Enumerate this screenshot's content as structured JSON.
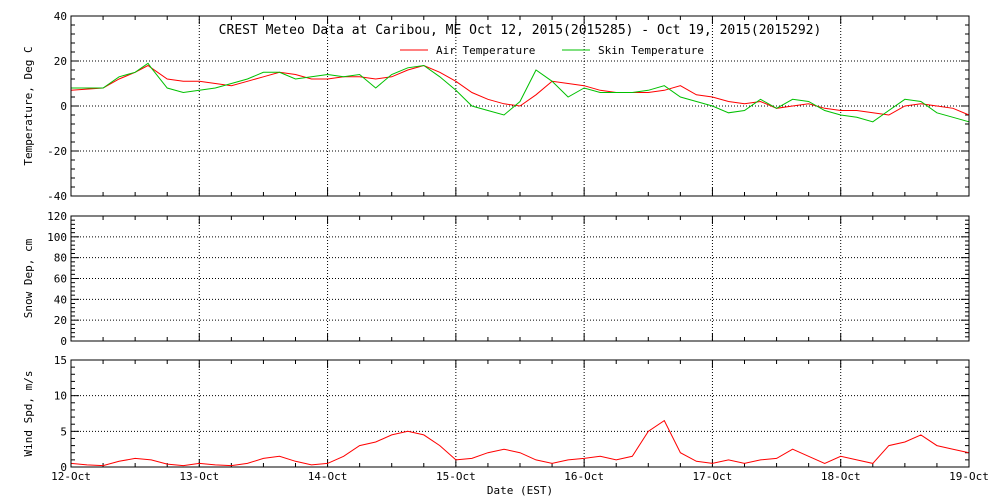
{
  "chart_data": [
    {
      "type": "line",
      "title": "CREST Meteo Data at Caribou, ME   Oct 12, 2015(2015285) - Oct 19, 2015(2015292)",
      "ylabel": "Temperature, Deg C",
      "ylim": [
        -40,
        40
      ],
      "yticks": [
        -40,
        -20,
        0,
        20,
        40
      ],
      "xlim": [
        0,
        7
      ],
      "grid": true,
      "legend": "top-center",
      "series": [
        {
          "name": "Air Temperature",
          "color": "#ff0000",
          "x": [
            0,
            0.125,
            0.25,
            0.375,
            0.5,
            0.6,
            0.625,
            0.75,
            0.875,
            1,
            1.125,
            1.25,
            1.375,
            1.5,
            1.625,
            1.75,
            1.875,
            2,
            2.125,
            2.25,
            2.375,
            2.5,
            2.625,
            2.75,
            2.875,
            3,
            3.125,
            3.25,
            3.375,
            3.5,
            3.625,
            3.75,
            3.875,
            4,
            4.125,
            4.25,
            4.375,
            4.5,
            4.625,
            4.75,
            4.875,
            5,
            5.125,
            5.25,
            5.375,
            5.5,
            5.625,
            5.75,
            5.875,
            6,
            6.125,
            6.25,
            6.375,
            6.5,
            6.625,
            6.75,
            6.875,
            7
          ],
          "values": [
            7,
            7.5,
            8,
            12,
            15,
            18,
            17,
            12,
            11,
            11,
            10,
            9,
            11,
            13,
            15,
            14,
            12,
            12,
            13,
            13,
            12,
            13,
            16,
            18,
            15,
            11,
            6,
            3,
            1,
            0,
            5,
            11,
            10,
            9,
            7,
            6,
            6,
            6,
            7,
            9,
            5,
            4,
            2,
            1,
            2,
            -1,
            0,
            1,
            -1,
            -2,
            -2,
            -3,
            -4,
            0,
            1,
            0,
            -1,
            -4
          ]
        },
        {
          "name": "Skin Temperature",
          "color": "#00c000",
          "x": [
            0,
            0.125,
            0.25,
            0.375,
            0.5,
            0.6,
            0.625,
            0.75,
            0.875,
            1,
            1.125,
            1.25,
            1.375,
            1.5,
            1.625,
            1.75,
            1.875,
            2,
            2.125,
            2.25,
            2.375,
            2.5,
            2.625,
            2.75,
            2.875,
            3,
            3.125,
            3.25,
            3.375,
            3.5,
            3.625,
            3.75,
            3.875,
            4,
            4.125,
            4.25,
            4.375,
            4.5,
            4.625,
            4.75,
            4.875,
            5,
            5.125,
            5.25,
            5.375,
            5.5,
            5.625,
            5.75,
            5.875,
            6,
            6.125,
            6.25,
            6.375,
            6.5,
            6.625,
            6.75,
            6.875,
            7
          ],
          "values": [
            8,
            8,
            8,
            13,
            15,
            19,
            17,
            8,
            6,
            7,
            8,
            10,
            12,
            15,
            15,
            12,
            13,
            14,
            13,
            14,
            8,
            14,
            17,
            18,
            13,
            7,
            0,
            -2,
            -4,
            2,
            16,
            11,
            4,
            8,
            6,
            6,
            6,
            7,
            9,
            4,
            2,
            0,
            -3,
            -2,
            3,
            -1,
            3,
            2,
            -2,
            -4,
            -5,
            -7,
            -2,
            3,
            2,
            -3,
            -5,
            -7
          ]
        }
      ]
    },
    {
      "type": "line",
      "ylabel": "Snow Dep, cm",
      "ylim": [
        0,
        120
      ],
      "yticks": [
        0,
        20,
        40,
        60,
        80,
        100,
        120
      ],
      "xlim": [
        0,
        7
      ],
      "grid": true,
      "series": []
    },
    {
      "type": "line",
      "ylabel": "Wind Spd, m/s",
      "xlabel": "Date (EST)",
      "ylim": [
        0,
        15
      ],
      "yticks": [
        0,
        5,
        10,
        15
      ],
      "xlim": [
        0,
        7
      ],
      "grid": true,
      "categories": [
        "12-Oct",
        "13-Oct",
        "14-Oct",
        "15-Oct",
        "16-Oct",
        "17-Oct",
        "18-Oct",
        "19-Oct"
      ],
      "series": [
        {
          "name": "Wind Speed",
          "color": "#ff0000",
          "x": [
            0,
            0.125,
            0.25,
            0.375,
            0.5,
            0.625,
            0.75,
            0.875,
            1,
            1.125,
            1.25,
            1.375,
            1.5,
            1.625,
            1.75,
            1.875,
            2,
            2.125,
            2.25,
            2.375,
            2.5,
            2.625,
            2.75,
            2.875,
            3,
            3.125,
            3.25,
            3.375,
            3.5,
            3.625,
            3.75,
            3.875,
            4,
            4.125,
            4.25,
            4.375,
            4.5,
            4.625,
            4.75,
            4.875,
            5,
            5.125,
            5.25,
            5.375,
            5.5,
            5.625,
            5.75,
            5.875,
            6,
            6.125,
            6.25,
            6.375,
            6.5,
            6.625,
            6.75,
            6.875,
            7
          ],
          "values": [
            0.5,
            0.3,
            0.2,
            0.8,
            1.2,
            1,
            0.4,
            0.2,
            0.5,
            0.3,
            0.2,
            0.5,
            1.2,
            1.5,
            0.8,
            0.3,
            0.5,
            1.5,
            3,
            3.5,
            4.5,
            5,
            4.5,
            3,
            1,
            1.2,
            2,
            2.5,
            2,
            1,
            0.5,
            1,
            1.2,
            1.5,
            1,
            1.5,
            5,
            6.5,
            2,
            0.8,
            0.5,
            1,
            0.5,
            1,
            1.2,
            2.5,
            1.5,
            0.5,
            1.5,
            1,
            0.5,
            3,
            3.5,
            4.5,
            3,
            2.5,
            2
          ]
        }
      ]
    }
  ]
}
